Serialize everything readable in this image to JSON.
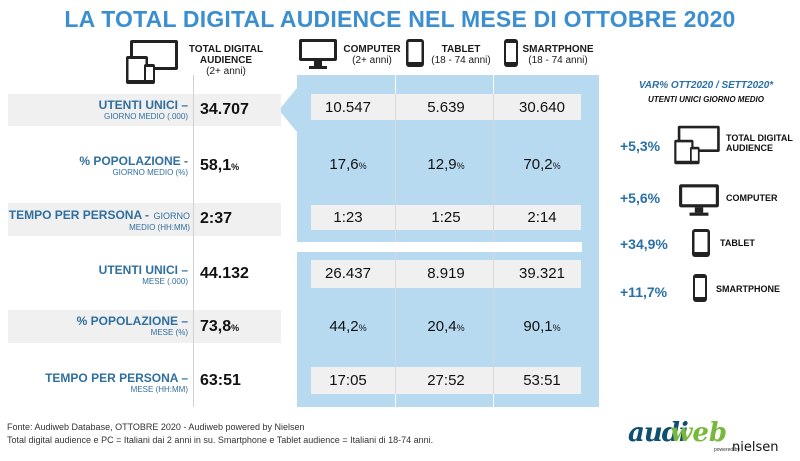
{
  "title": "LA TOTAL DIGITAL AUDIENCE NEL MESE DI OTTOBRE 2020",
  "headers": {
    "total": {
      "line1": "TOTAL DIGITAL",
      "line2": "AUDIENCE",
      "sub": "(2+ anni)"
    },
    "computer": {
      "label": "COMPUTER",
      "sub": "(2+ anni)"
    },
    "tablet": {
      "label": "TABLET",
      "sub": "(18 - 74 anni)"
    },
    "smartphone": {
      "label": "SMARTPHONE",
      "sub": "(18 - 74 anni)"
    }
  },
  "rows": [
    {
      "main": "UTENTI UNICI –",
      "sub": "GIORNO MEDIO (.000)",
      "total": "34.707",
      "computer": "10.547",
      "tablet": "5.639",
      "smartphone": "30.640"
    },
    {
      "main": "% POPOLAZIONE -",
      "sub": "GIORNO MEDIO (%)",
      "total": "58,1",
      "computer": "17,6",
      "tablet": "12,9",
      "smartphone": "70,2",
      "pct": "%"
    },
    {
      "main": "TEMPO PER PERSONA -",
      "main_tail": "GIORNO",
      "sub": "MEDIO (HH:MM)",
      "total": "2:37",
      "computer": "1:23",
      "tablet": "1:25",
      "smartphone": "2:14"
    },
    {
      "main": "UTENTI UNICI –",
      "sub": "MESE (.000)",
      "total": "44.132",
      "computer": "26.437",
      "tablet": "8.919",
      "smartphone": "39.321"
    },
    {
      "main": "% POPOLAZIONE –",
      "sub": "MESE (%)",
      "total": "73,8",
      "computer": "44,2",
      "tablet": "20,4",
      "smartphone": "90,1",
      "pct": "%"
    },
    {
      "main": "TEMPO PER PERSONA –",
      "sub": "MESE (HH:MM)",
      "total": "63:51",
      "computer": "17:05",
      "tablet": "27:52",
      "smartphone": "53:51"
    }
  ],
  "variation": {
    "title": "VAR% OTT2020 / SETT2020*",
    "subtitle": "UTENTI UNICI GIORNO MEDIO",
    "items": [
      {
        "pct": "+5,3%",
        "label1": "TOTAL DIGITAL",
        "label2": "AUDIENCE",
        "icon": "devices-icon"
      },
      {
        "pct": "+5,6%",
        "label1": "COMPUTER",
        "label2": "",
        "icon": "computer-icon"
      },
      {
        "pct": "+34,9%",
        "label1": "TABLET",
        "label2": "",
        "icon": "tablet-icon"
      },
      {
        "pct": "+11,7%",
        "label1": "SMARTPHONE",
        "label2": "",
        "icon": "smartphone-icon"
      }
    ]
  },
  "footer": {
    "line1": "Fonte: Audiweb Database, OTTOBRE 2020 - Audiweb powered by Nielsen",
    "line2": "Total digital audience e PC = Italiani dai 2 anni in su. Smartphone e Tablet audience = Italiani di 18-74 anni."
  },
  "logo": {
    "part1": "audi",
    "part2": "web",
    "powered": "powered by",
    "brand": "nielsen"
  },
  "colors": {
    "accent": "#3b8fd0",
    "panel": "#b7daf0",
    "label": "#2f6f9f",
    "logo_green": "#78b83a",
    "logo_blue": "#0f4f70"
  }
}
